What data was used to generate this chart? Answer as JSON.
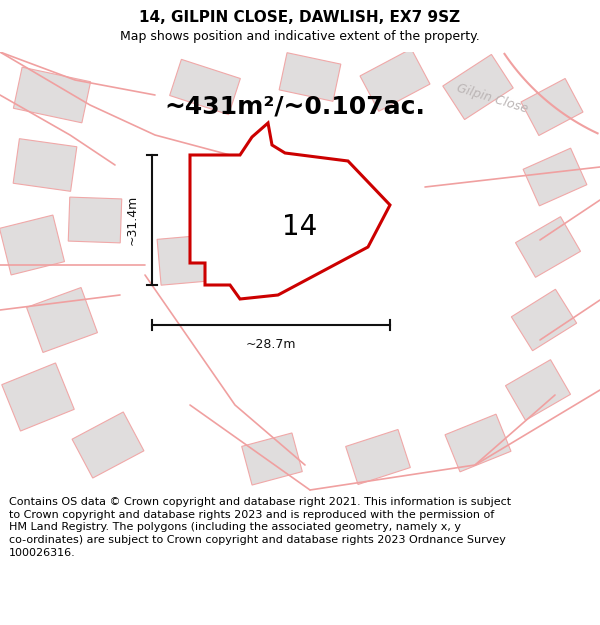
{
  "title": "14, GILPIN CLOSE, DAWLISH, EX7 9SZ",
  "subtitle": "Map shows position and indicative extent of the property.",
  "area_text": "~431m²/~0.107ac.",
  "label": "14",
  "dim_width": "~28.7m",
  "dim_height": "~31.4m",
  "street_label": "Gilpin Close",
  "footer_line1": "Contains OS data © Crown copyright and database right 2021. This information is subject",
  "footer_line2": "to Crown copyright and database rights 2023 and is reproduced with the permission of",
  "footer_line3": "HM Land Registry. The polygons (including the associated geometry, namely x, y",
  "footer_line4": "co-ordinates) are subject to Crown copyright and database rights 2023 Ordnance Survey",
  "footer_line5": "100026316.",
  "map_bg": "#ede9e9",
  "bldg_fill": "#e0dddd",
  "bldg_edge": "#f0a8a8",
  "road_color": "#f0a0a0",
  "plot_fill": "#ffffff",
  "plot_edge": "#cc0000",
  "dim_color": "#111111",
  "street_color": "#bbb5b5",
  "title_fontsize": 11,
  "subtitle_fontsize": 9,
  "area_fontsize": 18,
  "label_fontsize": 20,
  "dim_fontsize": 9,
  "street_fontsize": 9,
  "footer_fontsize": 8
}
